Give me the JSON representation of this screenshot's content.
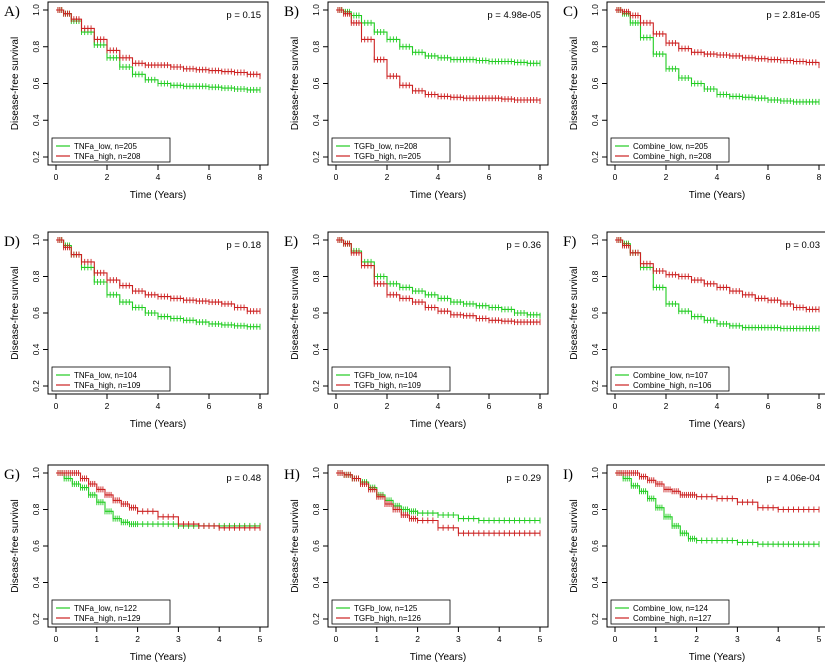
{
  "figure": {
    "colors": {
      "low": "#22cc22",
      "high": "#cc2222",
      "axis": "#000000"
    }
  },
  "chart_data": [
    {
      "type": "line",
      "label": "A)",
      "pvalue": "p = 0.15",
      "xlabel": "Time (Years)",
      "ylabel": "Disease-free survival",
      "xlim": [
        0,
        8
      ],
      "ylim": [
        0.2,
        1.0
      ],
      "xticks": [
        "0",
        "2",
        "4",
        "6",
        "8"
      ],
      "yticks": [
        "0.2",
        "0.4",
        "0.6",
        "0.8",
        "1.0"
      ],
      "series": [
        {
          "name": "TNFa_low, n=205",
          "group": "low",
          "x": [
            0,
            0.3,
            0.6,
            1.0,
            1.5,
            2.0,
            2.5,
            3.0,
            3.5,
            4.0,
            4.5,
            5.0,
            5.5,
            6.0,
            6.5,
            7.0,
            7.5,
            8.0
          ],
          "y": [
            1.0,
            0.98,
            0.94,
            0.88,
            0.81,
            0.74,
            0.69,
            0.65,
            0.62,
            0.6,
            0.59,
            0.585,
            0.585,
            0.58,
            0.575,
            0.57,
            0.565,
            0.565
          ]
        },
        {
          "name": "TNFa_high, n=208",
          "group": "high",
          "x": [
            0,
            0.3,
            0.6,
            1.0,
            1.5,
            2.0,
            2.5,
            3.0,
            3.5,
            4.0,
            4.5,
            5.0,
            5.5,
            6.0,
            6.5,
            7.0,
            7.5,
            8.0
          ],
          "y": [
            1.0,
            0.98,
            0.95,
            0.9,
            0.84,
            0.78,
            0.74,
            0.71,
            0.7,
            0.7,
            0.69,
            0.68,
            0.675,
            0.67,
            0.665,
            0.66,
            0.65,
            0.64
          ]
        }
      ]
    },
    {
      "type": "line",
      "label": "B)",
      "pvalue": "p = 4.98e-05",
      "xlabel": "Time (Years)",
      "ylabel": "Disease-free survival",
      "xlim": [
        0,
        8
      ],
      "ylim": [
        0.2,
        1.0
      ],
      "xticks": [
        "0",
        "2",
        "4",
        "6",
        "8"
      ],
      "yticks": [
        "0.2",
        "0.4",
        "0.6",
        "0.8",
        "1.0"
      ],
      "series": [
        {
          "name": "TGFb_low, n=208",
          "group": "low",
          "x": [
            0,
            0.3,
            0.6,
            1.0,
            1.5,
            2.0,
            2.5,
            3.0,
            3.5,
            4.0,
            4.5,
            5.0,
            5.5,
            6.0,
            6.5,
            7.0,
            7.5,
            8.0
          ],
          "y": [
            1.0,
            0.99,
            0.97,
            0.93,
            0.88,
            0.84,
            0.8,
            0.77,
            0.75,
            0.74,
            0.73,
            0.73,
            0.725,
            0.72,
            0.72,
            0.715,
            0.71,
            0.71
          ]
        },
        {
          "name": "TGFb_high, n=205",
          "group": "high",
          "x": [
            0,
            0.3,
            0.6,
            1.0,
            1.5,
            2.0,
            2.5,
            3.0,
            3.5,
            4.0,
            4.5,
            5.0,
            5.5,
            6.0,
            6.5,
            7.0,
            7.5,
            8.0
          ],
          "y": [
            1.0,
            0.98,
            0.93,
            0.84,
            0.73,
            0.64,
            0.59,
            0.56,
            0.54,
            0.53,
            0.525,
            0.52,
            0.52,
            0.52,
            0.515,
            0.51,
            0.51,
            0.505
          ]
        }
      ]
    },
    {
      "type": "line",
      "label": "C)",
      "pvalue": "p = 2.81e-05",
      "xlabel": "Time (Years)",
      "ylabel": "Disease-free survival",
      "xlim": [
        0,
        8
      ],
      "ylim": [
        0.2,
        1.0
      ],
      "xticks": [
        "0",
        "2",
        "4",
        "6",
        "8"
      ],
      "yticks": [
        "0.2",
        "0.4",
        "0.6",
        "0.8",
        "1.0"
      ],
      "series": [
        {
          "name": "Combine_low, n=205",
          "group": "low",
          "x": [
            0,
            0.3,
            0.6,
            1.0,
            1.5,
            2.0,
            2.5,
            3.0,
            3.5,
            4.0,
            4.5,
            5.0,
            5.5,
            6.0,
            6.5,
            7.0,
            7.5,
            8.0
          ],
          "y": [
            1.0,
            0.98,
            0.93,
            0.85,
            0.76,
            0.68,
            0.63,
            0.6,
            0.57,
            0.54,
            0.53,
            0.525,
            0.52,
            0.51,
            0.505,
            0.5,
            0.5,
            0.5
          ]
        },
        {
          "name": "Combine_high, n=208",
          "group": "high",
          "x": [
            0,
            0.3,
            0.6,
            1.0,
            1.5,
            2.0,
            2.5,
            3.0,
            3.5,
            4.0,
            4.5,
            5.0,
            5.5,
            6.0,
            6.5,
            7.0,
            7.5,
            8.0
          ],
          "y": [
            1.0,
            0.99,
            0.97,
            0.93,
            0.87,
            0.82,
            0.79,
            0.77,
            0.76,
            0.755,
            0.75,
            0.74,
            0.735,
            0.73,
            0.725,
            0.72,
            0.715,
            0.7
          ]
        }
      ]
    },
    {
      "type": "line",
      "label": "D)",
      "pvalue": "p = 0.18",
      "xlabel": "Time (Years)",
      "ylabel": "Disease-free survival",
      "xlim": [
        0,
        8
      ],
      "ylim": [
        0.2,
        1.0
      ],
      "xticks": [
        "0",
        "2",
        "4",
        "6",
        "8"
      ],
      "yticks": [
        "0.2",
        "0.4",
        "0.6",
        "0.8",
        "1.0"
      ],
      "series": [
        {
          "name": "TNFa_low, n=104",
          "group": "low",
          "x": [
            0,
            0.3,
            0.6,
            1.0,
            1.5,
            2.0,
            2.5,
            3.0,
            3.5,
            4.0,
            4.5,
            5.0,
            5.5,
            6.0,
            6.5,
            7.0,
            7.5,
            8.0
          ],
          "y": [
            1.0,
            0.97,
            0.92,
            0.85,
            0.77,
            0.7,
            0.66,
            0.63,
            0.6,
            0.58,
            0.57,
            0.56,
            0.55,
            0.54,
            0.535,
            0.53,
            0.525,
            0.525
          ]
        },
        {
          "name": "TNFa_high, n=109",
          "group": "high",
          "x": [
            0,
            0.3,
            0.6,
            1.0,
            1.5,
            2.0,
            2.5,
            3.0,
            3.5,
            4.0,
            4.5,
            5.0,
            5.5,
            6.0,
            6.5,
            7.0,
            7.5,
            8.0
          ],
          "y": [
            1.0,
            0.96,
            0.92,
            0.88,
            0.82,
            0.78,
            0.75,
            0.72,
            0.7,
            0.69,
            0.68,
            0.67,
            0.665,
            0.66,
            0.65,
            0.63,
            0.61,
            0.61
          ]
        }
      ]
    },
    {
      "type": "line",
      "label": "E)",
      "pvalue": "p = 0.36",
      "xlabel": "Time (Years)",
      "ylabel": "Disease-free survival",
      "xlim": [
        0,
        8
      ],
      "ylim": [
        0.2,
        1.0
      ],
      "xticks": [
        "0",
        "2",
        "4",
        "6",
        "8"
      ],
      "yticks": [
        "0.2",
        "0.4",
        "0.6",
        "0.8",
        "1.0"
      ],
      "series": [
        {
          "name": "TGFb_low, n=104",
          "group": "low",
          "x": [
            0,
            0.3,
            0.6,
            1.0,
            1.5,
            2.0,
            2.5,
            3.0,
            3.5,
            4.0,
            4.5,
            5.0,
            5.5,
            6.0,
            6.5,
            7.0,
            7.5,
            8.0
          ],
          "y": [
            1.0,
            0.98,
            0.94,
            0.88,
            0.8,
            0.76,
            0.74,
            0.72,
            0.7,
            0.68,
            0.66,
            0.65,
            0.64,
            0.63,
            0.62,
            0.6,
            0.59,
            0.585
          ]
        },
        {
          "name": "TGFb_high, n=109",
          "group": "high",
          "x": [
            0,
            0.3,
            0.6,
            1.0,
            1.5,
            2.0,
            2.5,
            3.0,
            3.5,
            4.0,
            4.5,
            5.0,
            5.5,
            6.0,
            6.5,
            7.0,
            7.5,
            8.0
          ],
          "y": [
            1.0,
            0.98,
            0.93,
            0.86,
            0.76,
            0.7,
            0.68,
            0.66,
            0.63,
            0.61,
            0.59,
            0.585,
            0.57,
            0.56,
            0.555,
            0.55,
            0.55,
            0.55
          ]
        }
      ]
    },
    {
      "type": "line",
      "label": "F)",
      "pvalue": "p = 0.03",
      "xlabel": "Time (Years)",
      "ylabel": "Disease-free survival",
      "xlim": [
        0,
        8
      ],
      "ylim": [
        0.2,
        1.0
      ],
      "xticks": [
        "0",
        "2",
        "4",
        "6",
        "8"
      ],
      "yticks": [
        "0.2",
        "0.4",
        "0.6",
        "0.8",
        "1.0"
      ],
      "series": [
        {
          "name": "Combine_low, n=107",
          "group": "low",
          "x": [
            0,
            0.3,
            0.6,
            1.0,
            1.5,
            2.0,
            2.5,
            3.0,
            3.5,
            4.0,
            4.5,
            5.0,
            5.5,
            6.0,
            6.5,
            7.0,
            7.5,
            8.0
          ],
          "y": [
            1.0,
            0.98,
            0.93,
            0.85,
            0.74,
            0.65,
            0.61,
            0.58,
            0.56,
            0.54,
            0.53,
            0.52,
            0.52,
            0.52,
            0.515,
            0.515,
            0.515,
            0.515
          ]
        },
        {
          "name": "Combine_high, n=106",
          "group": "high",
          "x": [
            0,
            0.3,
            0.6,
            1.0,
            1.5,
            2.0,
            2.5,
            3.0,
            3.5,
            4.0,
            4.5,
            5.0,
            5.5,
            6.0,
            6.5,
            7.0,
            7.5,
            8.0
          ],
          "y": [
            1.0,
            0.97,
            0.93,
            0.87,
            0.83,
            0.81,
            0.8,
            0.78,
            0.76,
            0.74,
            0.72,
            0.7,
            0.68,
            0.67,
            0.65,
            0.63,
            0.62,
            0.62
          ]
        }
      ]
    },
    {
      "type": "line",
      "label": "G)",
      "pvalue": "p = 0.48",
      "xlabel": "Time (Years)",
      "ylabel": "Disease-free survival",
      "xlim": [
        0,
        5
      ],
      "ylim": [
        0.2,
        1.0
      ],
      "xticks": [
        "0",
        "1",
        "2",
        "3",
        "4",
        "5"
      ],
      "yticks": [
        "0.2",
        "0.4",
        "0.6",
        "0.8",
        "1.0"
      ],
      "series": [
        {
          "name": "TNFa_low, n=122",
          "group": "low",
          "x": [
            0,
            0.2,
            0.4,
            0.6,
            0.8,
            1.0,
            1.2,
            1.4,
            1.6,
            1.8,
            2.0,
            2.5,
            3.0,
            3.5,
            4.0,
            4.5,
            5.0
          ],
          "y": [
            1.0,
            0.97,
            0.94,
            0.92,
            0.88,
            0.84,
            0.79,
            0.75,
            0.73,
            0.72,
            0.72,
            0.72,
            0.71,
            0.71,
            0.71,
            0.71,
            0.71
          ]
        },
        {
          "name": "TNFa_high, n=129",
          "group": "high",
          "x": [
            0,
            0.2,
            0.4,
            0.6,
            0.8,
            1.0,
            1.2,
            1.4,
            1.6,
            1.8,
            2.0,
            2.5,
            3.0,
            3.5,
            4.0,
            4.5,
            5.0
          ],
          "y": [
            1.0,
            1.0,
            1.0,
            0.97,
            0.94,
            0.91,
            0.88,
            0.85,
            0.83,
            0.81,
            0.79,
            0.76,
            0.72,
            0.71,
            0.7,
            0.7,
            0.7
          ]
        }
      ]
    },
    {
      "type": "line",
      "label": "H)",
      "pvalue": "p = 0.29",
      "xlabel": "Time (Years)",
      "ylabel": "Disease-free survival",
      "xlim": [
        0,
        5
      ],
      "ylim": [
        0.2,
        1.0
      ],
      "xticks": [
        "0",
        "1",
        "2",
        "3",
        "4",
        "5"
      ],
      "yticks": [
        "0.2",
        "0.4",
        "0.6",
        "0.8",
        "1.0"
      ],
      "series": [
        {
          "name": "TGFb_low, n=125",
          "group": "low",
          "x": [
            0,
            0.2,
            0.4,
            0.6,
            0.8,
            1.0,
            1.2,
            1.4,
            1.6,
            1.8,
            2.0,
            2.5,
            3.0,
            3.5,
            4.0,
            4.5,
            5.0
          ],
          "y": [
            1.0,
            0.99,
            0.97,
            0.95,
            0.92,
            0.88,
            0.85,
            0.82,
            0.8,
            0.79,
            0.78,
            0.77,
            0.75,
            0.74,
            0.74,
            0.74,
            0.74
          ]
        },
        {
          "name": "TGFb_high, n=126",
          "group": "high",
          "x": [
            0,
            0.2,
            0.4,
            0.6,
            0.8,
            1.0,
            1.2,
            1.4,
            1.6,
            1.8,
            2.0,
            2.5,
            3.0,
            3.5,
            4.0,
            4.5,
            5.0
          ],
          "y": [
            1.0,
            0.99,
            0.97,
            0.94,
            0.91,
            0.87,
            0.83,
            0.8,
            0.77,
            0.75,
            0.74,
            0.7,
            0.67,
            0.67,
            0.67,
            0.67,
            0.67
          ]
        }
      ]
    },
    {
      "type": "line",
      "label": "I)",
      "pvalue": "p = 4.06e-04",
      "xlabel": "Time (Years)",
      "ylabel": "Disease-free survival",
      "xlim": [
        0,
        5
      ],
      "ylim": [
        0.2,
        1.0
      ],
      "xticks": [
        "0",
        "1",
        "2",
        "3",
        "4",
        "5"
      ],
      "yticks": [
        "0.2",
        "0.4",
        "0.6",
        "0.8",
        "1.0"
      ],
      "series": [
        {
          "name": "Combine_low, n=124",
          "group": "low",
          "x": [
            0,
            0.2,
            0.4,
            0.6,
            0.8,
            1.0,
            1.2,
            1.4,
            1.6,
            1.8,
            2.0,
            2.5,
            3.0,
            3.5,
            4.0,
            4.5,
            5.0
          ],
          "y": [
            1.0,
            0.97,
            0.93,
            0.9,
            0.86,
            0.81,
            0.76,
            0.71,
            0.67,
            0.64,
            0.63,
            0.63,
            0.62,
            0.61,
            0.61,
            0.61,
            0.61
          ]
        },
        {
          "name": "Combine_high, n=127",
          "group": "high",
          "x": [
            0,
            0.2,
            0.4,
            0.6,
            0.8,
            1.0,
            1.2,
            1.4,
            1.6,
            1.8,
            2.0,
            2.5,
            3.0,
            3.5,
            4.0,
            4.5,
            5.0
          ],
          "y": [
            1.0,
            1.0,
            1.0,
            0.98,
            0.96,
            0.94,
            0.91,
            0.9,
            0.88,
            0.88,
            0.87,
            0.86,
            0.84,
            0.81,
            0.8,
            0.8,
            0.8
          ]
        }
      ]
    }
  ]
}
